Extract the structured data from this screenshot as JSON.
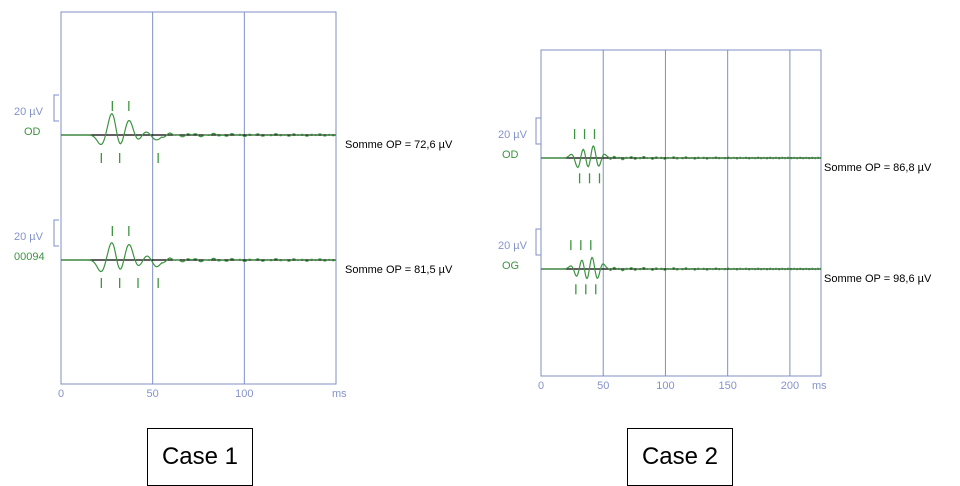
{
  "colors": {
    "frame": "#7f8fc6",
    "axis_text": "#8593cc",
    "wave": "#3d9440",
    "baseline": "#000000",
    "label_green": "#3d9440",
    "text": "#000000"
  },
  "chart_data": [
    {
      "type": "line",
      "title": "",
      "caption": "Case 1",
      "xlabel": "ms",
      "ylabel": "",
      "xlim": [
        0,
        150
      ],
      "x_ticks": [
        0,
        50,
        100
      ],
      "x_tick_labels": [
        "0",
        "50",
        "100"
      ],
      "x_unit_label": "ms",
      "grid": "vertical",
      "traces": [
        {
          "eye_label": "OD",
          "scale_label": "20 µV",
          "scale_value_uV": 20,
          "summary": "Somme OP = 72,6  µV",
          "somme_op_uV": 72.6,
          "peaks": [
            {
              "t": 22,
              "a": -10
            },
            {
              "t": 28,
              "a": 24
            },
            {
              "t": 32,
              "a": -14
            },
            {
              "t": 37,
              "a": 16
            },
            {
              "t": 42,
              "a": -6
            },
            {
              "t": 46,
              "a": 4
            },
            {
              "t": 52,
              "a": -5
            }
          ],
          "markers": [
            {
              "t": 22,
              "dir": "down"
            },
            {
              "t": 28,
              "dir": "up"
            },
            {
              "t": 32,
              "dir": "down"
            },
            {
              "t": 37,
              "dir": "up"
            },
            {
              "t": 53,
              "dir": "down"
            }
          ]
        },
        {
          "eye_label": "00094",
          "scale_label": "20 µV",
          "scale_value_uV": 20,
          "summary": "Somme OP = 81,5  µV",
          "somme_op_uV": 81.5,
          "peaks": [
            {
              "t": 22,
              "a": -12
            },
            {
              "t": 28,
              "a": 20
            },
            {
              "t": 32,
              "a": -14
            },
            {
              "t": 37,
              "a": 17
            },
            {
              "t": 42,
              "a": -7
            },
            {
              "t": 47,
              "a": 5
            },
            {
              "t": 52,
              "a": -7
            }
          ],
          "markers": [
            {
              "t": 22,
              "dir": "down"
            },
            {
              "t": 28,
              "dir": "up"
            },
            {
              "t": 32,
              "dir": "down"
            },
            {
              "t": 37,
              "dir": "up"
            },
            {
              "t": 42,
              "dir": "down"
            },
            {
              "t": 53,
              "dir": "down"
            }
          ]
        }
      ]
    },
    {
      "type": "line",
      "title": "",
      "caption": "Case 2",
      "xlabel": "ms",
      "ylabel": "",
      "xlim": [
        0,
        225
      ],
      "x_ticks": [
        0,
        50,
        100,
        150,
        200
      ],
      "x_tick_labels": [
        "0",
        "50",
        "100",
        "150",
        "200"
      ],
      "x_unit_label": "ms",
      "grid": "vertical",
      "traces": [
        {
          "eye_label": "OD",
          "scale_label": "20 µV",
          "scale_value_uV": 20,
          "summary": "Somme OP = 86,8  µV",
          "somme_op_uV": 86.8,
          "peaks": [
            {
              "t": 25,
              "a": 5
            },
            {
              "t": 30,
              "a": -14
            },
            {
              "t": 34,
              "a": 16
            },
            {
              "t": 38,
              "a": -17
            },
            {
              "t": 42,
              "a": 20
            },
            {
              "t": 46,
              "a": -14
            },
            {
              "t": 50,
              "a": 6
            }
          ],
          "markers": [
            {
              "t": 27,
              "dir": "up"
            },
            {
              "t": 31,
              "dir": "down"
            },
            {
              "t": 35,
              "dir": "up"
            },
            {
              "t": 39,
              "dir": "down"
            },
            {
              "t": 43,
              "dir": "up"
            },
            {
              "t": 47,
              "dir": "down"
            }
          ]
        },
        {
          "eye_label": "OG",
          "scale_label": "20 µV",
          "scale_value_uV": 20,
          "summary": "Somme OP = 98,6  µV",
          "somme_op_uV": 98.6,
          "peaks": [
            {
              "t": 25,
              "a": 5
            },
            {
              "t": 29,
              "a": -12
            },
            {
              "t": 33,
              "a": 16
            },
            {
              "t": 37,
              "a": -18
            },
            {
              "t": 41,
              "a": 20
            },
            {
              "t": 45,
              "a": -16
            },
            {
              "t": 49,
              "a": 8
            }
          ],
          "markers": [
            {
              "t": 24,
              "dir": "up"
            },
            {
              "t": 28,
              "dir": "down"
            },
            {
              "t": 32,
              "dir": "up"
            },
            {
              "t": 36,
              "dir": "down"
            },
            {
              "t": 40,
              "dir": "up"
            },
            {
              "t": 44,
              "dir": "down"
            }
          ]
        }
      ]
    }
  ]
}
